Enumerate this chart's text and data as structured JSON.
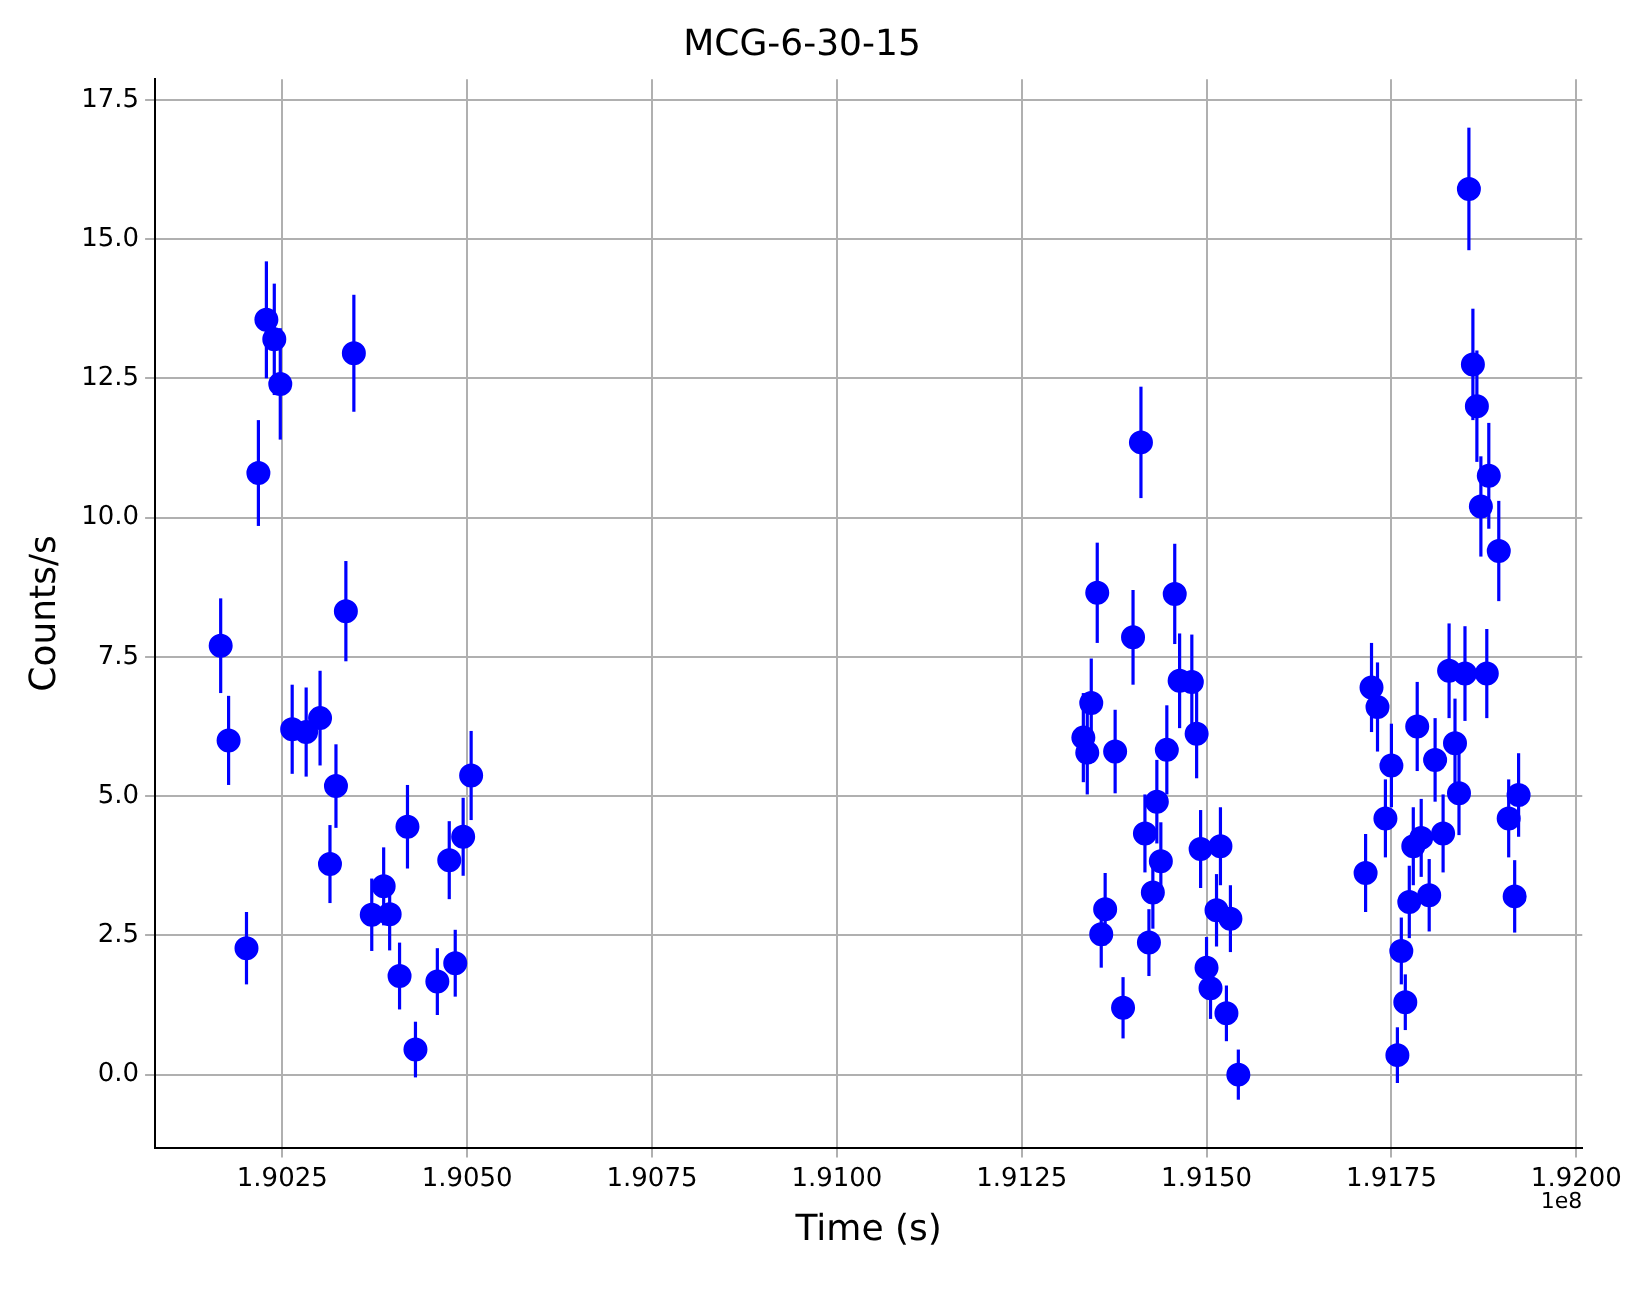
{
  "chart_data": {
    "type": "scatter",
    "title": "MCG-6-30-15",
    "xlabel": "Time (s)",
    "ylabel": "Counts/s",
    "annotations": [
      "1e8"
    ],
    "grid": true,
    "marker": "circle",
    "xlim": [
      1.90078,
      1.92008
    ],
    "ylim": [
      -1.31,
      17.87
    ],
    "xticks": [
      1.9025,
      {
        "value": 1.905,
        "label": "1.9050"
      },
      1.9075,
      {
        "value": 1.91,
        "label": "1.9100"
      },
      1.9125,
      {
        "value": 1.915,
        "label": "1.9150"
      },
      1.9175,
      {
        "value": 1.92,
        "label": "1.9200"
      }
    ],
    "yticks": [
      {
        "value": 0,
        "label": "0.0"
      },
      2.5,
      {
        "value": 5,
        "label": "5.0"
      },
      7.5,
      {
        "value": 10,
        "label": "10.0"
      },
      12.5,
      {
        "value": 15,
        "label": "15.0"
      },
      17.5
    ],
    "x": [
      1.901667,
      1.901774,
      1.902016,
      1.902177,
      1.902285,
      1.902392,
      1.902473,
      1.902634,
      1.902823,
      1.903011,
      1.903145,
      1.903226,
      1.90336,
      1.903468,
      1.90371,
      1.903871,
      1.903952,
      1.904086,
      1.904193,
      1.904301,
      1.904597,
      1.904758,
      1.904839,
      1.904946,
      1.905054,
      1.913333,
      1.913386,
      1.91344,
      1.913521,
      1.913575,
      1.913628,
      1.913763,
      1.91387,
      1.914005,
      1.914112,
      1.914166,
      1.91422,
      1.914273,
      1.914327,
      1.914381,
      1.914462,
      1.914569,
      1.914635,
      1.9148,
      1.914865,
      1.914919,
      1.914999,
      1.915053,
      1.915134,
      1.915187,
      1.915268,
      1.915322,
      1.915429,
      1.91715,
      1.91723,
      1.917311,
      1.917418,
      1.917499,
      1.91758,
      1.917633,
      1.917687,
      1.917741,
      1.917795,
      1.917848,
      1.917902,
      1.91801,
      1.91809,
      1.918198,
      1.918279,
      1.918359,
      1.918413,
      1.918494,
      1.918547,
      1.918601,
      1.918655,
      1.918709,
      1.918789,
      1.918816,
      1.918951,
      1.919085,
      1.919166,
      1.919219
    ],
    "values": [
      7.7,
      6.0,
      2.27,
      10.8,
      13.55,
      13.2,
      12.4,
      6.2,
      6.15,
      6.4,
      3.78,
      5.18,
      8.32,
      12.95,
      2.87,
      3.38,
      2.88,
      1.77,
      4.45,
      0.45,
      1.67,
      3.85,
      2.0,
      4.27,
      5.37,
      6.05,
      5.78,
      6.67,
      8.65,
      2.52,
      2.97,
      5.8,
      1.2,
      7.85,
      11.35,
      4.33,
      2.37,
      3.27,
      4.9,
      3.83,
      5.83,
      8.63,
      7.07,
      7.05,
      6.12,
      4.05,
      1.92,
      1.55,
      2.95,
      4.1,
      1.1,
      2.8,
      0.0,
      3.62,
      6.95,
      6.6,
      4.6,
      5.55,
      0.35,
      2.22,
      1.3,
      3.1,
      4.1,
      6.25,
      4.25,
      3.22,
      5.65,
      4.33,
      7.25,
      5.95,
      5.05,
      7.2,
      15.9,
      12.75,
      12.0,
      10.2,
      7.2,
      10.75,
      9.4,
      4.6,
      3.2,
      5.02
    ],
    "errors": [
      0.85,
      0.8,
      0.65,
      0.95,
      1.05,
      1.0,
      1.0,
      0.8,
      0.8,
      0.85,
      0.7,
      0.75,
      0.9,
      1.05,
      0.65,
      0.7,
      0.65,
      0.6,
      0.75,
      0.5,
      0.6,
      0.7,
      0.6,
      0.7,
      0.8,
      0.8,
      0.75,
      0.8,
      0.9,
      0.6,
      0.65,
      0.75,
      0.55,
      0.85,
      1.0,
      0.7,
      0.6,
      0.65,
      0.75,
      0.7,
      0.8,
      0.9,
      0.85,
      0.85,
      0.8,
      0.7,
      0.55,
      0.55,
      0.65,
      0.7,
      0.5,
      0.6,
      0.45,
      0.7,
      0.8,
      0.8,
      0.7,
      0.75,
      0.5,
      0.6,
      0.5,
      0.65,
      0.7,
      0.8,
      0.7,
      0.65,
      0.75,
      0.7,
      0.85,
      0.8,
      0.75,
      0.85,
      1.1,
      1.0,
      1.0,
      0.9,
      0.8,
      0.95,
      0.9,
      0.7,
      0.65,
      0.75
    ],
    "color": "#0000ff"
  }
}
